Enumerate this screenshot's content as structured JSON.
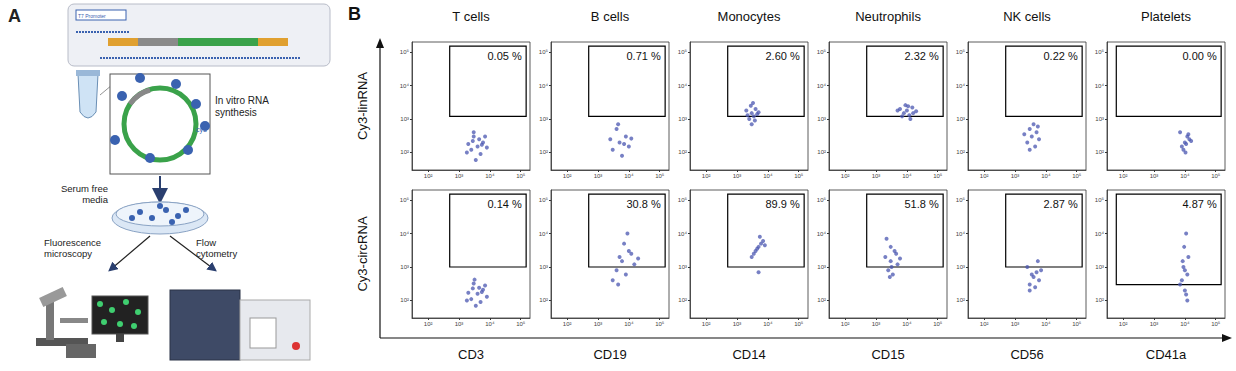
{
  "panel_a": {
    "label": "A",
    "plasmid_text": "T7 Promoter",
    "dye_text": "cy3",
    "synthesis_lines": [
      "In vitro RNA",
      "synthesis"
    ],
    "media_lines": [
      "Serum free",
      "media"
    ],
    "microscopy_lines": [
      "Fluorescence",
      "microscopy"
    ],
    "cytometry_lines": [
      "Flow",
      "cytometry"
    ]
  },
  "panel_b": {
    "label": "B"
  },
  "chart_data": [
    {
      "type": "scatter",
      "title": "T cells",
      "ylabel": "Cy3-linRNA",
      "log": true,
      "color": "#4a56b0",
      "xlim": [
        30,
        200000
      ],
      "ylim": [
        30,
        200000
      ],
      "xticks": [
        {
          "value": 100,
          "label": "10²"
        },
        {
          "value": 1000,
          "label": "10³"
        },
        {
          "value": 10000,
          "label": "10⁴"
        },
        {
          "value": 100000,
          "label": "10⁵"
        }
      ],
      "yticks": [
        {
          "value": 100,
          "label": "10²"
        },
        {
          "value": 1000,
          "label": "10³"
        },
        {
          "value": 10000,
          "label": "10⁴"
        },
        {
          "value": 100000,
          "label": "10⁵"
        }
      ],
      "x": [
        4000,
        2500,
        6000,
        3000,
        5000,
        2000,
        8000,
        3500,
        4500,
        7000,
        1800,
        3000,
        5500,
        2800
      ],
      "values": [
        150,
        120,
        200,
        300,
        90,
        180,
        140,
        60,
        250,
        300,
        100,
        400,
        170,
        220
      ],
      "gate": {
        "x": [
          500,
          150000
        ],
        "y": [
          1200,
          150000
        ],
        "label": "0.05 %"
      }
    },
    {
      "type": "scatter",
      "title": "B cells",
      "log": true,
      "color": "#4a56b0",
      "xlim": [
        30,
        200000
      ],
      "ylim": [
        30,
        200000
      ],
      "xticks": [
        {
          "value": 100,
          "label": "10²"
        },
        {
          "value": 1000,
          "label": "10³"
        },
        {
          "value": 10000,
          "label": "10⁴"
        },
        {
          "value": 100000,
          "label": "10⁵"
        }
      ],
      "yticks": [
        {
          "value": 100,
          "label": "10²"
        },
        {
          "value": 1000,
          "label": "10³"
        },
        {
          "value": 10000,
          "label": "10⁴"
        },
        {
          "value": 100000,
          "label": "10⁵"
        }
      ],
      "x": [
        5000,
        3000,
        8000,
        4000,
        10000,
        6000,
        2500,
        7000,
        4500,
        12000
      ],
      "values": [
        200,
        120,
        300,
        500,
        150,
        80,
        250,
        180,
        700,
        260
      ],
      "gate": {
        "x": [
          500,
          150000
        ],
        "y": [
          1200,
          150000
        ],
        "label": "0.71 %"
      }
    },
    {
      "type": "scatter",
      "title": "Monocytes",
      "log": true,
      "color": "#4a56b0",
      "xlim": [
        30,
        200000
      ],
      "ylim": [
        30,
        200000
      ],
      "xticks": [
        {
          "value": 100,
          "label": "10²"
        },
        {
          "value": 1000,
          "label": "10³"
        },
        {
          "value": 10000,
          "label": "10⁴"
        },
        {
          "value": 100000,
          "label": "10⁵"
        }
      ],
      "yticks": [
        {
          "value": 100,
          "label": "10²"
        },
        {
          "value": 1000,
          "label": "10³"
        },
        {
          "value": 10000,
          "label": "10⁴"
        },
        {
          "value": 100000,
          "label": "10⁵"
        }
      ],
      "x": [
        3000,
        2500,
        4000,
        3500,
        2000,
        4500,
        3000,
        2800,
        3800,
        5000,
        2200,
        3300
      ],
      "values": [
        1500,
        1000,
        2000,
        1200,
        1800,
        1400,
        700,
        2500,
        900,
        1600,
        1300,
        3000
      ],
      "gate": {
        "x": [
          500,
          150000
        ],
        "y": [
          1200,
          150000
        ],
        "label": "2.60 %"
      }
    },
    {
      "type": "scatter",
      "title": "Neutrophils",
      "log": true,
      "color": "#4a56b0",
      "xlim": [
        30,
        200000
      ],
      "ylim": [
        30,
        200000
      ],
      "xticks": [
        {
          "value": 100,
          "label": "10²"
        },
        {
          "value": 1000,
          "label": "10³"
        },
        {
          "value": 10000,
          "label": "10⁴"
        },
        {
          "value": 100000,
          "label": "10⁵"
        }
      ],
      "yticks": [
        {
          "value": 100,
          "label": "10²"
        },
        {
          "value": 1000,
          "label": "10³"
        },
        {
          "value": 10000,
          "label": "10⁴"
        },
        {
          "value": 100000,
          "label": "10⁵"
        }
      ],
      "x": [
        10000,
        8000,
        15000,
        12000,
        6000,
        20000,
        9000,
        13000,
        7000,
        11000,
        16000,
        5000
      ],
      "values": [
        1800,
        1500,
        2200,
        1300,
        2000,
        1700,
        2600,
        1000,
        1200,
        2400,
        1500,
        1800
      ],
      "gate": {
        "x": [
          500,
          150000
        ],
        "y": [
          1200,
          150000
        ],
        "label": "2.32 %"
      }
    },
    {
      "type": "scatter",
      "title": "NK cells",
      "log": true,
      "color": "#4a56b0",
      "xlim": [
        30,
        200000
      ],
      "ylim": [
        30,
        200000
      ],
      "xticks": [
        {
          "value": 100,
          "label": "10²"
        },
        {
          "value": 1000,
          "label": "10³"
        },
        {
          "value": 10000,
          "label": "10⁴"
        },
        {
          "value": 100000,
          "label": "10⁵"
        }
      ],
      "yticks": [
        {
          "value": 100,
          "label": "10²"
        },
        {
          "value": 1000,
          "label": "10³"
        },
        {
          "value": 10000,
          "label": "10⁴"
        },
        {
          "value": 100000,
          "label": "10⁵"
        }
      ],
      "x": [
        3500,
        2500,
        5000,
        3000,
        4500,
        2000,
        6000,
        4000,
        3000,
        5500
      ],
      "values": [
        300,
        200,
        400,
        500,
        150,
        350,
        250,
        700,
        120,
        600
      ],
      "gate": {
        "x": [
          500,
          150000
        ],
        "y": [
          1200,
          150000
        ],
        "label": "0.22 %"
      }
    },
    {
      "type": "scatter",
      "title": "Platelets",
      "log": true,
      "color": "#4a56b0",
      "xlim": [
        30,
        200000
      ],
      "ylim": [
        30,
        200000
      ],
      "xticks": [
        {
          "value": 100,
          "label": "10²"
        },
        {
          "value": 1000,
          "label": "10³"
        },
        {
          "value": 10000,
          "label": "10⁴"
        },
        {
          "value": 100000,
          "label": "10⁵"
        }
      ],
      "yticks": [
        {
          "value": 100,
          "label": "10²"
        },
        {
          "value": 1000,
          "label": "10³"
        },
        {
          "value": 10000,
          "label": "10⁴"
        },
        {
          "value": 100000,
          "label": "10⁵"
        }
      ],
      "x": [
        10000,
        8000,
        14000,
        12000,
        9000,
        11000,
        7000,
        16000,
        10500,
        13000
      ],
      "values": [
        200,
        150,
        250,
        300,
        120,
        180,
        400,
        220,
        100,
        350
      ],
      "gate": {
        "x": [
          60,
          150000
        ],
        "y": [
          1200,
          150000
        ],
        "label": "0.00 %"
      }
    },
    {
      "type": "scatter",
      "ylabel": "Cy3-circRNA",
      "xlabel": "CD3",
      "log": true,
      "color": "#4a56b0",
      "xlim": [
        30,
        200000
      ],
      "ylim": [
        30,
        200000
      ],
      "xticks": [
        {
          "value": 100,
          "label": "10²"
        },
        {
          "value": 1000,
          "label": "10³"
        },
        {
          "value": 10000,
          "label": "10⁴"
        },
        {
          "value": 100000,
          "label": "10⁵"
        }
      ],
      "yticks": [
        {
          "value": 100,
          "label": "10²"
        },
        {
          "value": 1000,
          "label": "10³"
        },
        {
          "value": 10000,
          "label": "10⁴"
        },
        {
          "value": 100000,
          "label": "10⁵"
        }
      ],
      "x": [
        4000,
        2500,
        6000,
        3000,
        5000,
        2000,
        8000,
        3500,
        4500,
        7000,
        1800,
        3200,
        5500,
        2800
      ],
      "values": [
        160,
        110,
        210,
        320,
        90,
        170,
        130,
        70,
        240,
        280,
        100,
        420,
        180,
        230
      ],
      "gate": {
        "x": [
          500,
          150000
        ],
        "y": [
          1000,
          150000
        ],
        "label": "0.14 %"
      }
    },
    {
      "type": "scatter",
      "xlabel": "CD19",
      "log": true,
      "color": "#4a56b0",
      "xlim": [
        30,
        200000
      ],
      "ylim": [
        30,
        200000
      ],
      "xticks": [
        {
          "value": 100,
          "label": "10²"
        },
        {
          "value": 1000,
          "label": "10³"
        },
        {
          "value": 10000,
          "label": "10⁴"
        },
        {
          "value": 100000,
          "label": "10⁵"
        }
      ],
      "yticks": [
        {
          "value": 100,
          "label": "10²"
        },
        {
          "value": 1000,
          "label": "10³"
        },
        {
          "value": 10000,
          "label": "10⁴"
        },
        {
          "value": 100000,
          "label": "10⁵"
        }
      ],
      "x": [
        6000,
        4000,
        10000,
        8000,
        5000,
        15000,
        3000,
        7000,
        12000,
        9000,
        4500,
        20000
      ],
      "values": [
        1500,
        800,
        3000,
        600,
        2000,
        1200,
        400,
        5000,
        2500,
        10000,
        300,
        1800
      ],
      "gate": {
        "x": [
          500,
          150000
        ],
        "y": [
          1000,
          150000
        ],
        "label": "30.8 %"
      }
    },
    {
      "type": "scatter",
      "xlabel": "CD14",
      "log": true,
      "color": "#4a56b0",
      "xlim": [
        30,
        200000
      ],
      "ylim": [
        30,
        200000
      ],
      "xticks": [
        {
          "value": 100,
          "label": "10²"
        },
        {
          "value": 1000,
          "label": "10³"
        },
        {
          "value": 10000,
          "label": "10⁴"
        },
        {
          "value": 100000,
          "label": "10⁵"
        }
      ],
      "yticks": [
        {
          "value": 100,
          "label": "10²"
        },
        {
          "value": 1000,
          "label": "10³"
        },
        {
          "value": 10000,
          "label": "10⁴"
        },
        {
          "value": 100000,
          "label": "10⁵"
        }
      ],
      "x": [
        5000,
        4000,
        6000,
        3500,
        7000,
        4500,
        5500,
        3000,
        8000,
        5000
      ],
      "values": [
        4000,
        3000,
        5000,
        2500,
        6000,
        3500,
        8000,
        2000,
        4500,
        700
      ],
      "gate": {
        "x": [
          500,
          150000
        ],
        "y": [
          1000,
          150000
        ],
        "label": "89.9 %"
      }
    },
    {
      "type": "scatter",
      "xlabel": "CD15",
      "log": true,
      "color": "#4a56b0",
      "xlim": [
        30,
        200000
      ],
      "ylim": [
        30,
        200000
      ],
      "xticks": [
        {
          "value": 100,
          "label": "10²"
        },
        {
          "value": 1000,
          "label": "10³"
        },
        {
          "value": 10000,
          "label": "10⁴"
        },
        {
          "value": 100000,
          "label": "10⁵"
        }
      ],
      "yticks": [
        {
          "value": 100,
          "label": "10²"
        },
        {
          "value": 1000,
          "label": "10³"
        },
        {
          "value": 10000,
          "label": "10⁴"
        },
        {
          "value": 100000,
          "label": "10⁵"
        }
      ],
      "x": [
        3000,
        2500,
        4000,
        3500,
        2000,
        5000,
        3000,
        2800,
        4500,
        3200,
        6000,
        2200
      ],
      "values": [
        1500,
        800,
        3000,
        600,
        2000,
        1200,
        4000,
        500,
        2500,
        1000,
        1800,
        7000
      ],
      "gate": {
        "x": [
          500,
          150000
        ],
        "y": [
          1000,
          150000
        ],
        "label": "51.8 %"
      }
    },
    {
      "type": "scatter",
      "xlabel": "CD56",
      "log": true,
      "color": "#4a56b0",
      "xlim": [
        30,
        200000
      ],
      "ylim": [
        30,
        200000
      ],
      "xticks": [
        {
          "value": 100,
          "label": "10²"
        },
        {
          "value": 1000,
          "label": "10³"
        },
        {
          "value": 10000,
          "label": "10⁴"
        },
        {
          "value": 100000,
          "label": "10⁵"
        }
      ],
      "yticks": [
        {
          "value": 100,
          "label": "10²"
        },
        {
          "value": 1000,
          "label": "10³"
        },
        {
          "value": 10000,
          "label": "10⁴"
        },
        {
          "value": 100000,
          "label": "10⁵"
        }
      ],
      "x": [
        4000,
        3000,
        5000,
        6000,
        2500,
        4500,
        3500,
        7000,
        5500,
        3000
      ],
      "values": [
        500,
        300,
        700,
        400,
        1000,
        250,
        600,
        800,
        1500,
        200
      ],
      "gate": {
        "x": [
          500,
          150000
        ],
        "y": [
          1000,
          150000
        ],
        "label": "2.87 %"
      }
    },
    {
      "type": "scatter",
      "xlabel": "CD41a",
      "log": true,
      "color": "#4a56b0",
      "xlim": [
        30,
        200000
      ],
      "ylim": [
        30,
        200000
      ],
      "xticks": [
        {
          "value": 100,
          "label": "10²"
        },
        {
          "value": 1000,
          "label": "10³"
        },
        {
          "value": 10000,
          "label": "10⁴"
        },
        {
          "value": 100000,
          "label": "10⁵"
        }
      ],
      "yticks": [
        {
          "value": 100,
          "label": "10²"
        },
        {
          "value": 1000,
          "label": "10³"
        },
        {
          "value": 10000,
          "label": "10⁴"
        },
        {
          "value": 100000,
          "label": "10⁵"
        }
      ],
      "x": [
        10000,
        8000,
        12000,
        9000,
        11000,
        7000,
        13000,
        10000,
        9500,
        12000,
        8500,
        11000
      ],
      "values": [
        200,
        400,
        600,
        1000,
        150,
        300,
        2000,
        800,
        4000,
        100,
        1500,
        10000
      ],
      "gate": {
        "x": [
          60,
          150000
        ],
        "y": [
          300,
          150000
        ],
        "label": "4.87 %"
      }
    }
  ]
}
